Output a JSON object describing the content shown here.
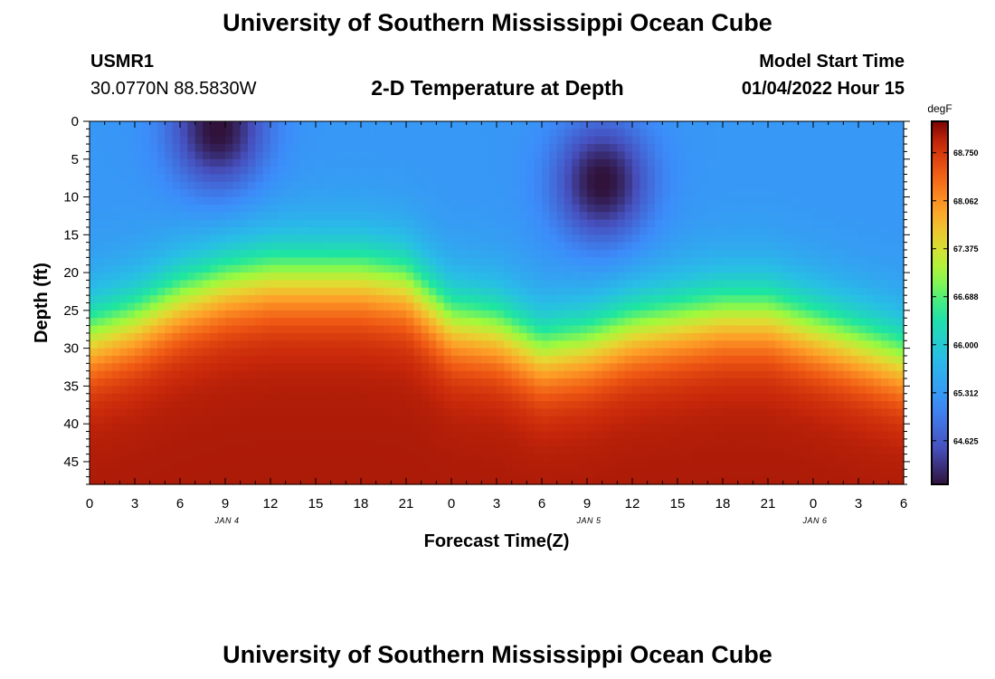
{
  "page": {
    "title": "University of Southern Mississippi Ocean Cube",
    "station_id": "USMR1",
    "coordinates": "30.0770N  88.5830W",
    "subtitle": "2-D Temperature at Depth",
    "model_label": "Model Start Time",
    "model_time": "01/04/2022 Hour 15",
    "footer_title": "University of Southern Mississippi Ocean Cube"
  },
  "chart_data": {
    "type": "heatmap",
    "xlabel": "Forecast Time(Z)",
    "ylabel": "Depth (ft)",
    "x_ticks": [
      "0",
      "3",
      "6",
      "9",
      "12",
      "15",
      "18",
      "21",
      "0",
      "3",
      "6",
      "9",
      "12",
      "15",
      "18",
      "21",
      "0",
      "3",
      "6"
    ],
    "date_labels": [
      {
        "label": "JAN 4",
        "tick_index": 2.5
      },
      {
        "label": "JAN 5",
        "tick_index": 10.5
      },
      {
        "label": "JAN 6",
        "tick_index": 15.5
      }
    ],
    "y_ticks": [
      0,
      5,
      10,
      15,
      20,
      25,
      30,
      35,
      40,
      45
    ],
    "ylim": [
      48,
      0
    ],
    "x_range_hours": [
      0,
      54
    ],
    "colorbar": {
      "unit": "degF",
      "labels": [
        "68.750",
        "68.062",
        "67.375",
        "66.688",
        "66.000",
        "65.312",
        "64.625"
      ],
      "min": 64.0,
      "max": 69.2
    },
    "thermocline_depth_ft": [
      {
        "hour": 0,
        "depth": 24
      },
      {
        "hour": 3,
        "depth": 22
      },
      {
        "hour": 6,
        "depth": 19
      },
      {
        "hour": 9,
        "depth": 17
      },
      {
        "hour": 12,
        "depth": 16
      },
      {
        "hour": 15,
        "depth": 16
      },
      {
        "hour": 18,
        "depth": 16
      },
      {
        "hour": 21,
        "depth": 17
      },
      {
        "hour": 24,
        "depth": 22
      },
      {
        "hour": 27,
        "depth": 23
      },
      {
        "hour": 30,
        "depth": 26
      },
      {
        "hour": 33,
        "depth": 25
      },
      {
        "hour": 36,
        "depth": 23
      },
      {
        "hour": 39,
        "depth": 22
      },
      {
        "hour": 42,
        "depth": 21
      },
      {
        "hour": 45,
        "depth": 21
      },
      {
        "hour": 48,
        "depth": 23
      },
      {
        "hour": 51,
        "depth": 25
      },
      {
        "hour": 54,
        "depth": 27
      }
    ],
    "cold_cores": [
      {
        "hour": 8.5,
        "depth": 1,
        "temp": 63.9
      },
      {
        "hour": 34,
        "depth": 8,
        "temp": 63.9
      }
    ],
    "surface_temp_degF": 65.3,
    "bottom_temp_degF": 69.0
  }
}
